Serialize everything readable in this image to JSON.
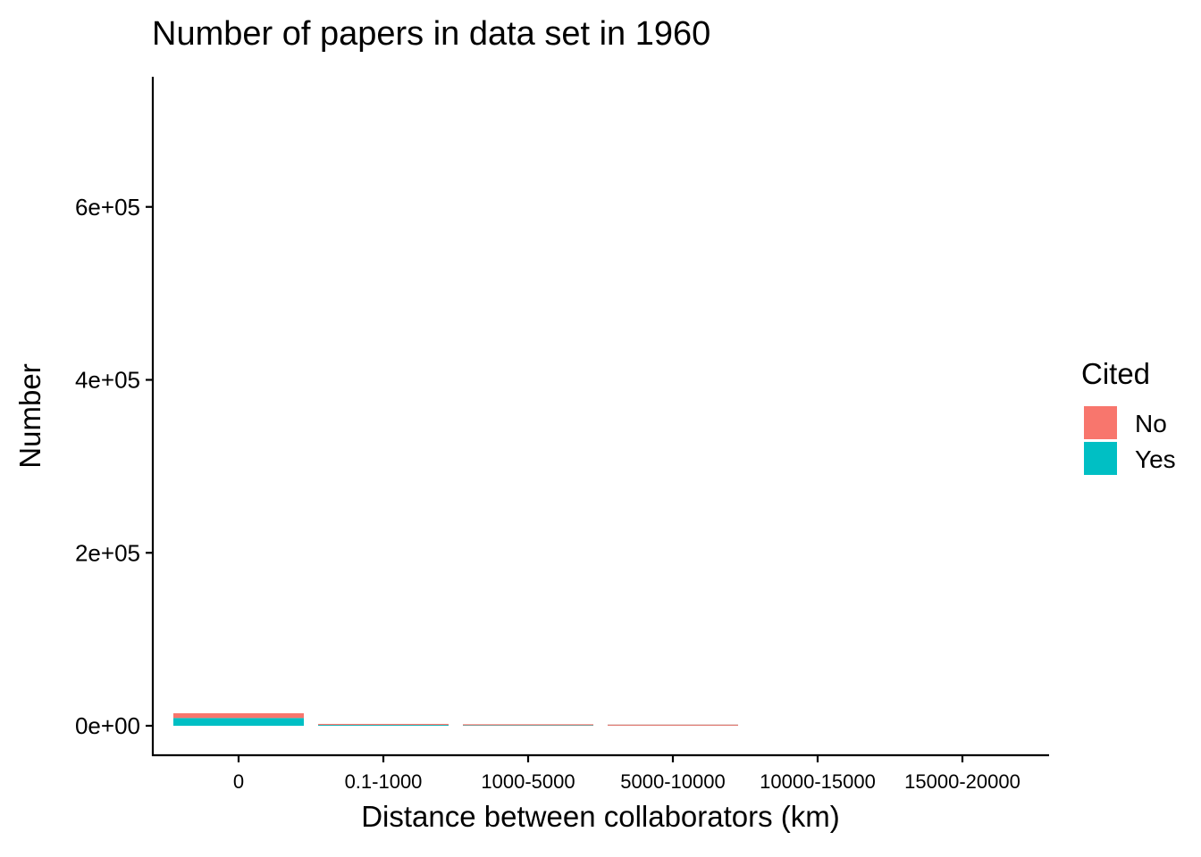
{
  "chart_data": {
    "type": "bar",
    "stacked": true,
    "title": "Number of papers in data set in 1960",
    "xlabel": "Distance between collaborators (km)",
    "ylabel": "Number",
    "categories": [
      "0",
      "0.1-1000",
      "1000-5000",
      "5000-10000",
      "10000-15000",
      "15000-20000"
    ],
    "series": [
      {
        "name": "No",
        "color": "#F8766D",
        "values": [
          5500,
          500,
          900,
          150,
          0,
          0
        ]
      },
      {
        "name": "Yes",
        "color": "#00BFC4",
        "values": [
          9000,
          900,
          500,
          100,
          0,
          0
        ]
      }
    ],
    "ylim": [
      -17000,
      750000
    ],
    "yticks": [
      0,
      200000,
      400000,
      600000
    ],
    "ytick_labels": [
      "0e+00",
      "2e+05",
      "4e+05",
      "6e+05"
    ],
    "legend": {
      "title": "Cited",
      "position": "right"
    },
    "grid": false
  }
}
